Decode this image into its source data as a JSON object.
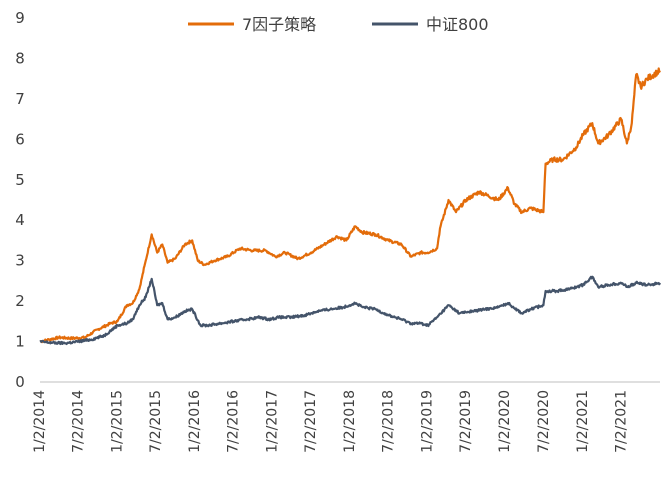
{
  "chart_data": {
    "type": "line",
    "title": "",
    "xlabel": "",
    "ylabel": "",
    "ylim": [
      0,
      9
    ],
    "yticks": [
      0,
      1,
      2,
      3,
      4,
      5,
      6,
      7,
      8,
      9
    ],
    "xlim": [
      "2014-01-02",
      "2021-12-31"
    ],
    "xticks": [
      "1/2/2014",
      "7/2/2014",
      "1/2/2015",
      "7/2/2015",
      "1/2/2016",
      "7/2/2016",
      "1/2/2017",
      "7/2/2017",
      "1/2/2018",
      "7/2/2018",
      "1/2/2019",
      "7/2/2019",
      "1/2/2020",
      "7/2/2020",
      "1/2/2021",
      "7/2/2021"
    ],
    "grid": false,
    "legend_position": "top-center",
    "series": [
      {
        "name": "7因子策略",
        "color": "#E36C0A",
        "points": [
          [
            "2014-01-02",
            1.0
          ],
          [
            "2014-02-15",
            1.05
          ],
          [
            "2014-04-01",
            1.1
          ],
          [
            "2014-06-01",
            1.08
          ],
          [
            "2014-08-01",
            1.1
          ],
          [
            "2014-10-01",
            1.3
          ],
          [
            "2014-12-01",
            1.45
          ],
          [
            "2015-01-02",
            1.5
          ],
          [
            "2015-02-15",
            1.9
          ],
          [
            "2015-03-15",
            1.95
          ],
          [
            "2015-04-15",
            2.3
          ],
          [
            "2015-05-15",
            3.0
          ],
          [
            "2015-06-12",
            3.65
          ],
          [
            "2015-07-08",
            3.2
          ],
          [
            "2015-08-01",
            3.4
          ],
          [
            "2015-08-26",
            2.95
          ],
          [
            "2015-10-01",
            3.05
          ],
          [
            "2015-11-15",
            3.4
          ],
          [
            "2015-12-20",
            3.5
          ],
          [
            "2016-01-15",
            3.0
          ],
          [
            "2016-02-15",
            2.9
          ],
          [
            "2016-04-01",
            3.0
          ],
          [
            "2016-06-01",
            3.1
          ],
          [
            "2016-08-01",
            3.3
          ],
          [
            "2016-10-01",
            3.25
          ],
          [
            "2016-12-01",
            3.25
          ],
          [
            "2017-01-15",
            3.1
          ],
          [
            "2017-03-01",
            3.2
          ],
          [
            "2017-05-01",
            3.05
          ],
          [
            "2017-07-01",
            3.2
          ],
          [
            "2017-09-01",
            3.4
          ],
          [
            "2017-11-01",
            3.6
          ],
          [
            "2017-12-15",
            3.5
          ],
          [
            "2018-01-25",
            3.85
          ],
          [
            "2018-03-01",
            3.7
          ],
          [
            "2018-05-01",
            3.65
          ],
          [
            "2018-07-01",
            3.5
          ],
          [
            "2018-09-01",
            3.4
          ],
          [
            "2018-10-15",
            3.1
          ],
          [
            "2018-12-01",
            3.2
          ],
          [
            "2019-01-02",
            3.2
          ],
          [
            "2019-02-15",
            3.3
          ],
          [
            "2019-03-01",
            3.8
          ],
          [
            "2019-04-10",
            4.5
          ],
          [
            "2019-05-15",
            4.2
          ],
          [
            "2019-07-01",
            4.5
          ],
          [
            "2019-09-01",
            4.7
          ],
          [
            "2019-10-15",
            4.6
          ],
          [
            "2019-12-01",
            4.5
          ],
          [
            "2020-01-15",
            4.8
          ],
          [
            "2020-02-15",
            4.4
          ],
          [
            "2020-03-20",
            4.2
          ],
          [
            "2020-05-01",
            4.3
          ],
          [
            "2020-06-30",
            4.2
          ],
          [
            "2020-07-10",
            5.4
          ],
          [
            "2020-08-15",
            5.5
          ],
          [
            "2020-10-01",
            5.5
          ],
          [
            "2020-12-01",
            5.8
          ],
          [
            "2021-01-02",
            6.1
          ],
          [
            "2021-02-15",
            6.4
          ],
          [
            "2021-03-15",
            5.9
          ],
          [
            "2021-05-01",
            6.1
          ],
          [
            "2021-07-01",
            6.5
          ],
          [
            "2021-07-28",
            5.9
          ],
          [
            "2021-08-20",
            6.4
          ],
          [
            "2021-09-10",
            7.6
          ],
          [
            "2021-10-01",
            7.3
          ],
          [
            "2021-11-01",
            7.5
          ],
          [
            "2021-12-31",
            7.7
          ]
        ]
      },
      {
        "name": "中证800",
        "color": "#44546A",
        "points": [
          [
            "2014-01-02",
            1.0
          ],
          [
            "2014-03-01",
            0.97
          ],
          [
            "2014-05-01",
            0.96
          ],
          [
            "2014-07-01",
            1.0
          ],
          [
            "2014-09-01",
            1.05
          ],
          [
            "2014-11-01",
            1.15
          ],
          [
            "2015-01-02",
            1.4
          ],
          [
            "2015-02-15",
            1.45
          ],
          [
            "2015-03-15",
            1.55
          ],
          [
            "2015-04-15",
            1.9
          ],
          [
            "2015-05-15",
            2.1
          ],
          [
            "2015-06-12",
            2.55
          ],
          [
            "2015-07-08",
            1.9
          ],
          [
            "2015-08-01",
            1.95
          ],
          [
            "2015-08-26",
            1.55
          ],
          [
            "2015-10-01",
            1.6
          ],
          [
            "2015-11-15",
            1.75
          ],
          [
            "2015-12-20",
            1.8
          ],
          [
            "2016-01-28",
            1.4
          ],
          [
            "2016-03-01",
            1.4
          ],
          [
            "2016-05-01",
            1.45
          ],
          [
            "2016-07-01",
            1.5
          ],
          [
            "2016-09-01",
            1.55
          ],
          [
            "2016-11-01",
            1.6
          ],
          [
            "2016-12-15",
            1.55
          ],
          [
            "2017-02-01",
            1.6
          ],
          [
            "2017-04-01",
            1.6
          ],
          [
            "2017-06-01",
            1.65
          ],
          [
            "2017-08-01",
            1.75
          ],
          [
            "2017-10-01",
            1.8
          ],
          [
            "2017-12-01",
            1.85
          ],
          [
            "2018-01-25",
            1.95
          ],
          [
            "2018-03-01",
            1.85
          ],
          [
            "2018-05-01",
            1.8
          ],
          [
            "2018-07-01",
            1.65
          ],
          [
            "2018-09-01",
            1.55
          ],
          [
            "2018-10-15",
            1.45
          ],
          [
            "2018-12-01",
            1.45
          ],
          [
            "2019-01-02",
            1.4
          ],
          [
            "2019-02-15",
            1.6
          ],
          [
            "2019-04-10",
            1.9
          ],
          [
            "2019-06-01",
            1.7
          ],
          [
            "2019-08-01",
            1.75
          ],
          [
            "2019-10-01",
            1.8
          ],
          [
            "2019-12-01",
            1.85
          ],
          [
            "2020-01-15",
            1.95
          ],
          [
            "2020-03-20",
            1.7
          ],
          [
            "2020-05-01",
            1.8
          ],
          [
            "2020-06-30",
            1.9
          ],
          [
            "2020-07-10",
            2.25
          ],
          [
            "2020-09-01",
            2.25
          ],
          [
            "2020-11-01",
            2.3
          ],
          [
            "2021-01-02",
            2.4
          ],
          [
            "2021-02-15",
            2.6
          ],
          [
            "2021-03-15",
            2.35
          ],
          [
            "2021-05-01",
            2.4
          ],
          [
            "2021-07-01",
            2.45
          ],
          [
            "2021-08-01",
            2.35
          ],
          [
            "2021-09-10",
            2.45
          ],
          [
            "2021-11-01",
            2.4
          ],
          [
            "2021-12-31",
            2.45
          ]
        ]
      }
    ]
  }
}
